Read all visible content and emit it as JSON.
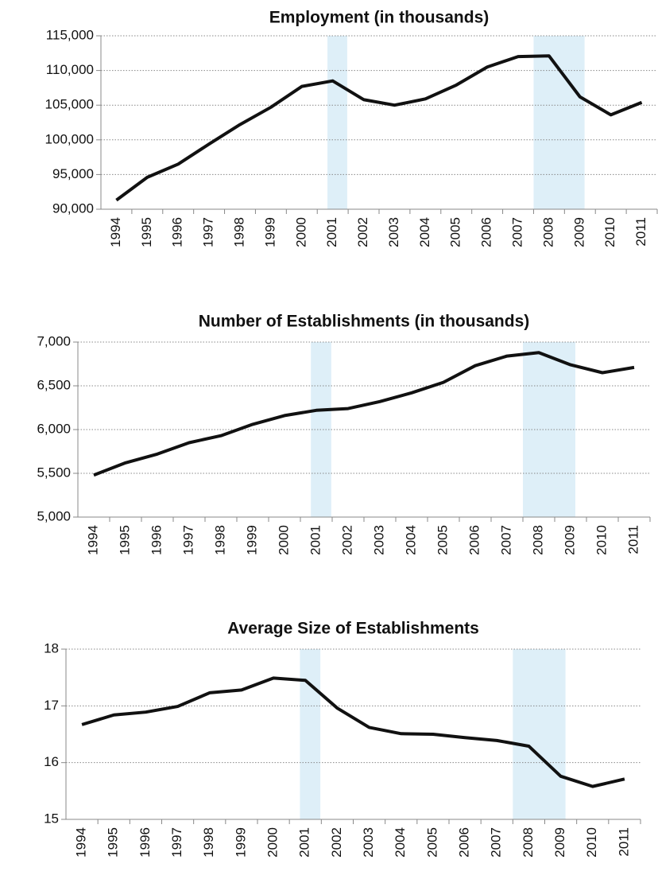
{
  "chart_data": [
    {
      "type": "line",
      "title": "Employment (in thousands)",
      "x": [
        1994,
        1995,
        1996,
        1997,
        1998,
        1999,
        2000,
        2001,
        2002,
        2003,
        2004,
        2005,
        2006,
        2007,
        2008,
        2009,
        2010,
        2011
      ],
      "series": [
        {
          "color": "#111111",
          "values": [
            91300,
            94600,
            96500,
            99400,
            102200,
            104700,
            107700,
            108500,
            105800,
            105000,
            105900,
            107900,
            110500,
            112000,
            112100,
            106200,
            103600,
            105400
          ]
        }
      ],
      "xlim": [
        1993.5,
        2011.5
      ],
      "ylim": [
        90000,
        115000
      ],
      "yticks": [
        {
          "value": 90000,
          "label": "90,000"
        },
        {
          "value": 95000,
          "label": "95,000"
        },
        {
          "value": 100000,
          "label": "100,000"
        },
        {
          "value": 105000,
          "label": "105,000"
        },
        {
          "value": 110000,
          "label": "110,000"
        },
        {
          "value": 115000,
          "label": "115,000"
        }
      ],
      "grid": true,
      "shaded": [
        [
          2000.83,
          2001.47
        ],
        [
          2007.5,
          2009.15
        ]
      ],
      "shade_color": "#deeff8"
    },
    {
      "type": "line",
      "title": "Number of Establishments (in thousands)",
      "x": [
        1994,
        1995,
        1996,
        1997,
        1998,
        1999,
        2000,
        2001,
        2002,
        2003,
        2004,
        2005,
        2006,
        2007,
        2008,
        2009,
        2010,
        2011
      ],
      "series": [
        {
          "color": "#111111",
          "values": [
            5480,
            5620,
            5720,
            5850,
            5930,
            6060,
            6160,
            6220,
            6240,
            6320,
            6420,
            6540,
            6730,
            6840,
            6880,
            6740,
            6650,
            6710
          ]
        }
      ],
      "xlim": [
        1993.5,
        2011.5
      ],
      "ylim": [
        5000,
        7000
      ],
      "yticks": [
        {
          "value": 5000,
          "label": "5,000"
        },
        {
          "value": 5500,
          "label": "5,500"
        },
        {
          "value": 6000,
          "label": "6,000"
        },
        {
          "value": 6500,
          "label": "6,500"
        },
        {
          "value": 7000,
          "label": "7,000"
        }
      ],
      "grid": true,
      "shaded": [
        [
          2000.83,
          2001.47
        ],
        [
          2007.5,
          2009.15
        ]
      ],
      "shade_color": "#deeff8"
    },
    {
      "type": "line",
      "title": "Average Size of Establishments",
      "x": [
        1994,
        1995,
        1996,
        1997,
        1998,
        1999,
        2000,
        2001,
        2002,
        2003,
        2004,
        2005,
        2006,
        2007,
        2008,
        2009,
        2010,
        2011
      ],
      "series": [
        {
          "color": "#111111",
          "values": [
            16.67,
            16.84,
            16.89,
            16.99,
            17.23,
            17.28,
            17.49,
            17.45,
            16.96,
            16.62,
            16.51,
            16.5,
            16.44,
            16.39,
            16.29,
            15.76,
            15.58,
            15.71
          ]
        }
      ],
      "xlim": [
        1993.5,
        2011.5
      ],
      "ylim": [
        15,
        18
      ],
      "yticks": [
        15,
        16,
        17,
        18
      ],
      "grid": true,
      "shaded": [
        [
          2000.83,
          2001.47
        ],
        [
          2007.5,
          2009.15
        ]
      ],
      "shade_color": "#deeff8"
    }
  ]
}
